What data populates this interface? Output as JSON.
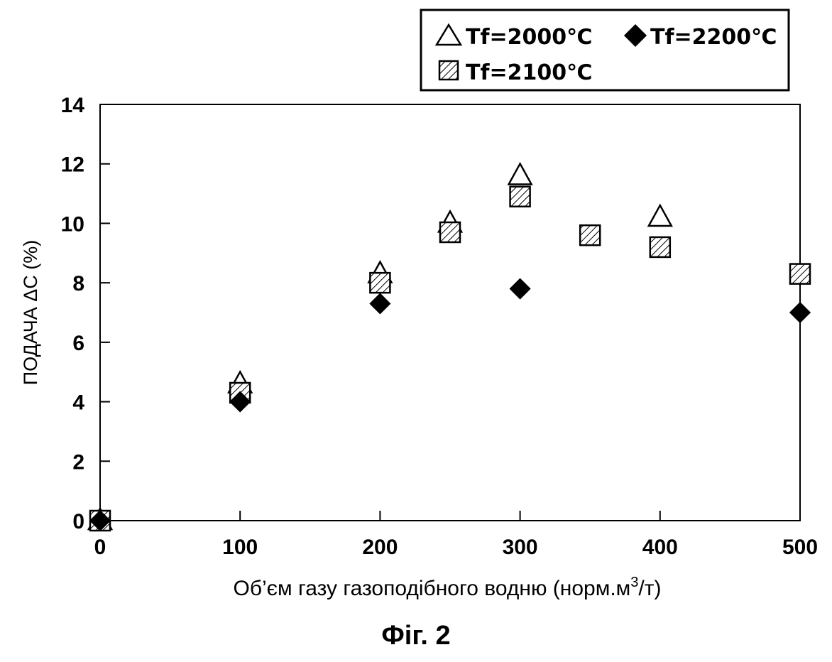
{
  "chart_data": {
    "type": "scatter",
    "caption": "Фіг. 2",
    "xlabel_main": "Об’єм газу газоподібного водню (норм.м",
    "xlabel_sup": "3",
    "xlabel_end": "/т)",
    "ylabel": "ПОДАЧА ΔC (%)",
    "xlim": [
      0,
      500
    ],
    "ylim": [
      0,
      14
    ],
    "xticks": [
      "0",
      "100",
      "200",
      "300",
      "400",
      "500"
    ],
    "yticks": [
      "0",
      "2",
      "4",
      "6",
      "8",
      "10",
      "12",
      "14"
    ],
    "legend_position": "top-right",
    "series": [
      {
        "name": "Tf=2000℃",
        "marker": "triangle-open",
        "points": [
          [
            0,
            0
          ],
          [
            100,
            4.6
          ],
          [
            200,
            8.3
          ],
          [
            250,
            10.0
          ],
          [
            300,
            11.6
          ],
          [
            400,
            10.2
          ]
        ]
      },
      {
        "name": "Tf=2200℃",
        "marker": "diamond-filled",
        "points": [
          [
            0,
            0
          ],
          [
            100,
            4.0
          ],
          [
            200,
            7.3
          ],
          [
            300,
            7.8
          ],
          [
            500,
            7.0
          ]
        ]
      },
      {
        "name": "Tf=2100℃",
        "marker": "square-hatched",
        "points": [
          [
            0,
            0
          ],
          [
            100,
            4.3
          ],
          [
            200,
            8.0
          ],
          [
            250,
            9.7
          ],
          [
            300,
            10.9
          ],
          [
            350,
            9.6
          ],
          [
            400,
            9.2
          ],
          [
            500,
            8.3
          ]
        ]
      }
    ]
  }
}
